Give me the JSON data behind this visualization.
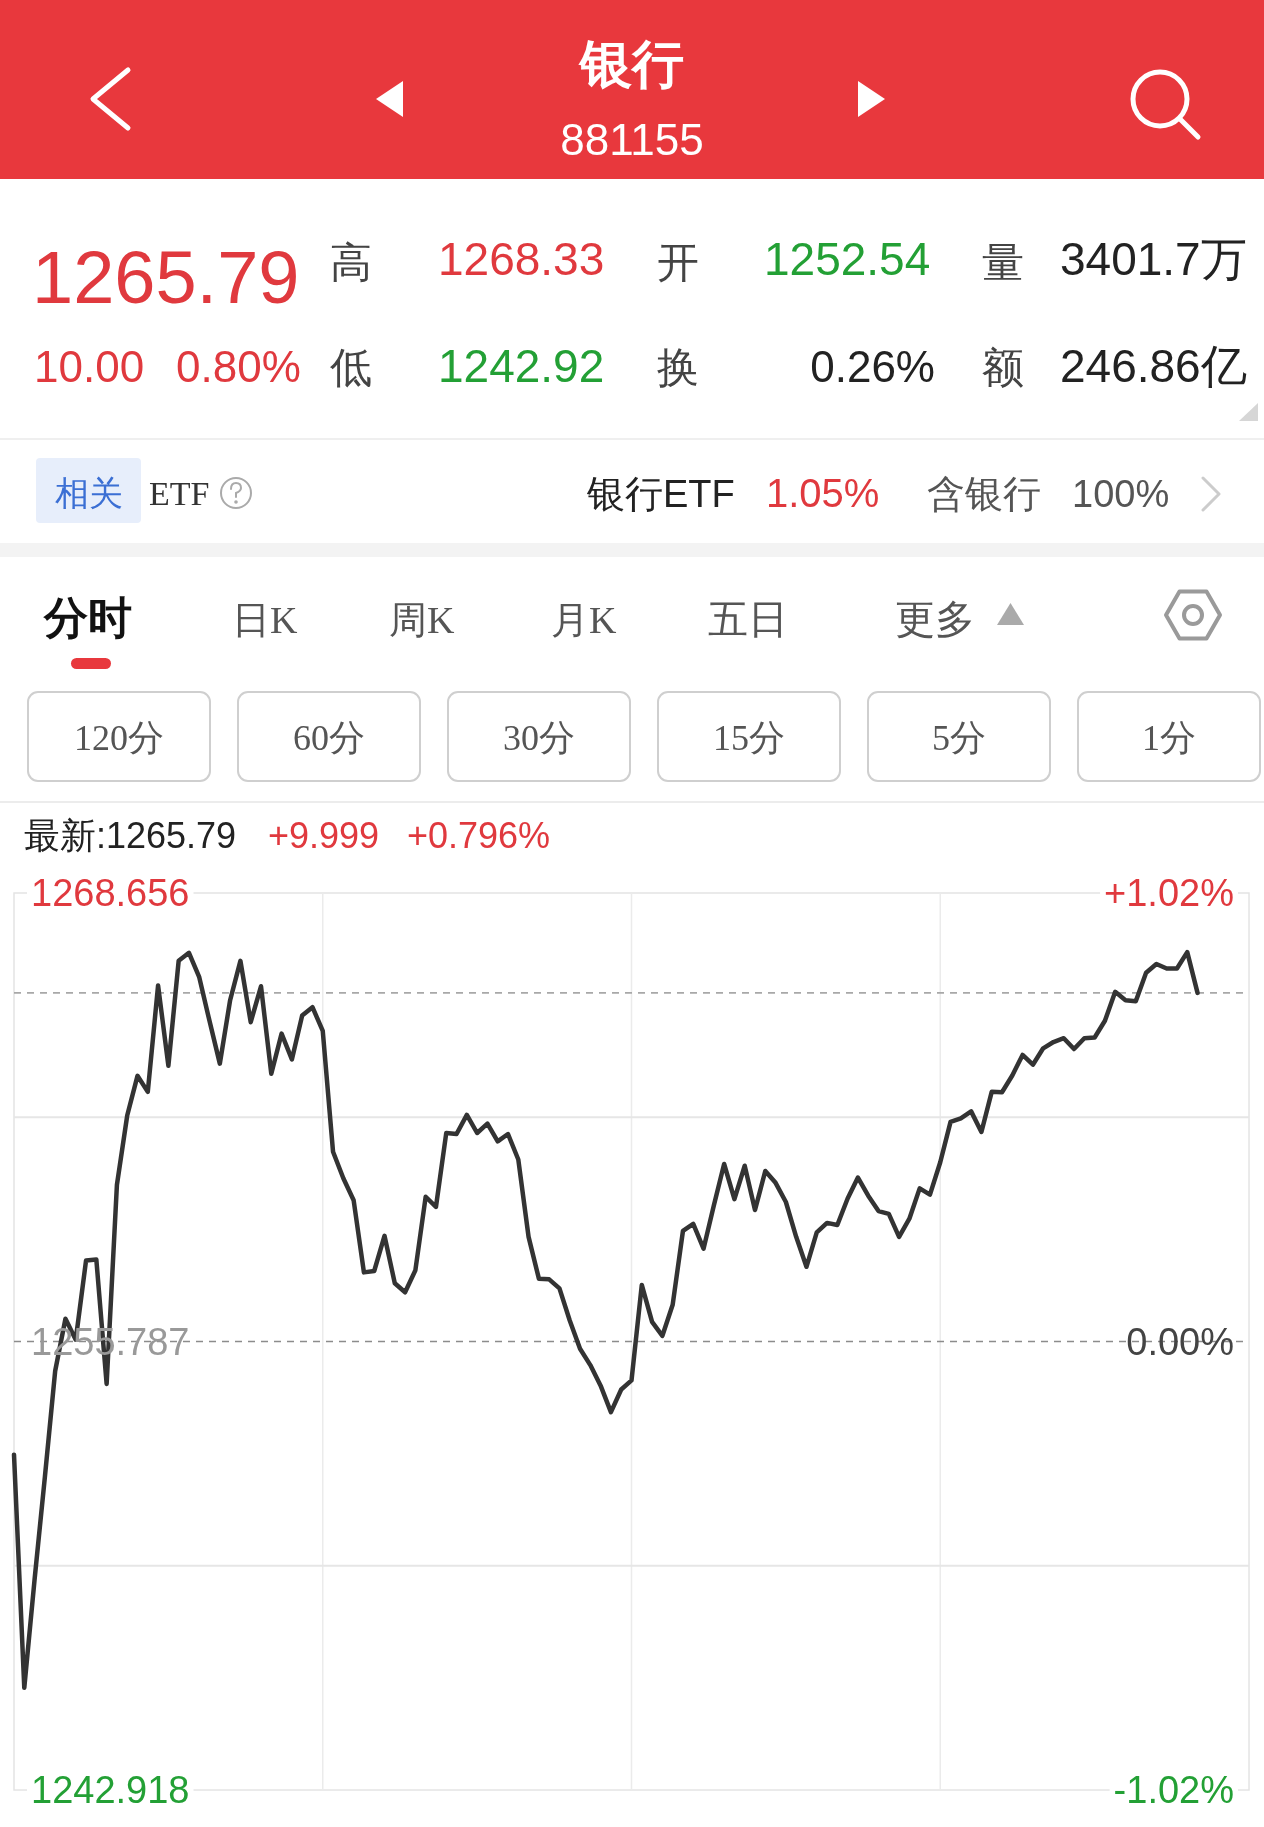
{
  "chart_data": {
    "type": "line",
    "title": "银行",
    "subtitle": "881155",
    "annotations": [
      "1265.79",
      "高",
      "1268.33",
      "开",
      "1252.54",
      "量",
      "3401.7万",
      "10.00",
      "0.80%",
      "低",
      "1242.92",
      "换",
      "0.26%",
      "额",
      "246.86亿",
      "相关",
      "ETF",
      "银行ETF",
      "1.05%",
      "含银行",
      "100%",
      "分时",
      "日K",
      "周K",
      "月K",
      "五日",
      "更多",
      "120分",
      "60分",
      "30分",
      "15分",
      "5分",
      "1分",
      "最新:1265.79",
      "+9.999",
      "+0.796%"
    ],
    "categories": [
      null,
      null,
      null,
      null,
      null,
      null,
      null,
      null,
      null,
      null,
      null,
      null,
      null,
      null,
      null,
      null,
      null,
      null,
      null,
      null,
      null,
      null,
      null,
      null,
      null,
      null,
      null,
      null,
      null,
      null,
      null,
      null,
      null,
      null,
      null,
      null,
      null,
      null,
      null,
      null,
      null,
      null,
      null,
      null,
      null,
      null,
      null,
      null,
      null,
      null,
      null,
      null,
      null,
      null,
      null,
      null,
      null,
      null,
      null,
      null,
      null,
      null,
      null,
      null,
      null,
      null,
      null,
      null,
      null,
      null,
      null,
      null,
      null,
      null,
      null,
      null,
      null,
      null,
      null,
      null,
      null,
      null,
      null,
      null,
      null,
      null,
      null,
      null,
      null,
      null,
      null,
      null,
      null,
      null,
      null,
      null,
      null,
      null,
      null,
      null,
      null,
      null,
      null,
      null,
      null,
      null,
      null,
      null,
      null,
      null,
      null,
      null,
      null,
      null,
      null,
      null,
      null,
      null,
      null,
      null,
      null
    ],
    "series": [
      {
        "color": "#333333",
        "values": [
          1252.54,
          1245.85,
          1248.96,
          1251.9,
          1254.94,
          1256.44,
          1255.84,
          1258.11,
          1258.14,
          1254.57,
          1260.28,
          1262.27,
          1263.41,
          1262.95,
          1266.0,
          1263.7,
          1266.71,
          1266.94,
          1266.24,
          1264.98,
          1263.76,
          1265.58,
          1266.71,
          1264.95,
          1265.98,
          1263.47,
          1264.62,
          1263.88,
          1265.14,
          1265.38,
          1264.7,
          1261.23,
          1260.47,
          1259.84,
          1257.77,
          1257.81,
          1258.82,
          1257.46,
          1257.2,
          1257.83,
          1259.94,
          1259.65,
          1261.77,
          1261.74,
          1262.29,
          1261.77,
          1262.04,
          1261.53,
          1261.74,
          1261.01,
          1258.79,
          1257.59,
          1257.57,
          1257.31,
          1256.39,
          1255.58,
          1255.11,
          1254.52,
          1253.76,
          1254.41,
          1254.67,
          1257.41,
          1256.35,
          1255.95,
          1256.84,
          1258.96,
          1259.16,
          1258.45,
          1259.69,
          1260.88,
          1259.87,
          1260.83,
          1259.56,
          1260.68,
          1260.34,
          1259.79,
          1258.79,
          1257.93,
          1258.92,
          1259.19,
          1259.13,
          1259.89,
          1260.49,
          1259.97,
          1259.53,
          1259.45,
          1258.79,
          1259.31,
          1260.18,
          1260.0,
          1260.93,
          1262.09,
          1262.19,
          1262.39,
          1261.8,
          1262.95,
          1262.94,
          1263.42,
          1264.01,
          1263.73,
          1264.2,
          1264.38,
          1264.49,
          1264.18,
          1264.49,
          1264.51,
          1264.99,
          1265.82,
          1265.58,
          1265.55,
          1266.37,
          1266.62,
          1266.49,
          1266.49,
          1266.96,
          1265.79,
          null,
          null,
          null,
          null,
          null
        ]
      }
    ],
    "ylim": [
      1242.918,
      1268.656
    ],
    "yticks": [
      1268.656,
      {
        "value": 1262.2215,
        "label": null
      },
      1255.787,
      {
        "value": 1249.3525,
        "label": null
      },
      1242.918
    ],
    "y2lim": [
      -1.02,
      1.02
    ],
    "y2ticks": [
      {
        "value": 1.02,
        "label": "+1.02%"
      },
      {
        "value": 0,
        "label": "0.00%"
      },
      {
        "value": -1.02,
        "label": "-1.02%"
      }
    ],
    "ref_lines": [
      {
        "axis": "y",
        "value": 1265.79,
        "color": "#a8a8a8",
        "line_style": "dashed"
      },
      {
        "axis": "y",
        "value": 1255.787,
        "color": "#8c8c8c",
        "line_style": "dashed"
      }
    ],
    "grid": true
  }
}
